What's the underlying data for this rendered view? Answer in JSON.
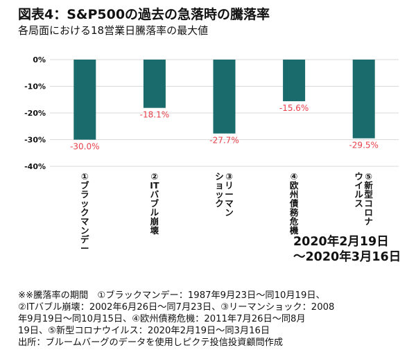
{
  "title": "図表4：S&P500の過去の急落時の騰落率",
  "subtitle": "各局面における18営業日騰落率の最大値",
  "chart_data": {
    "type": "bar",
    "categories": [
      "①ブラックマンデー",
      "②ITバブル崩壊",
      "③リーマンショック",
      "④欧州債務危機",
      "⑤新型コロナウイルス"
    ],
    "category_lines": [
      [
        "①ブラックマンデー"
      ],
      [
        "②ITバブル崩壊"
      ],
      [
        "③リーマン",
        "ショック"
      ],
      [
        "④欧州債務危機"
      ],
      [
        "⑤新型コロナ",
        "ウイルス"
      ]
    ],
    "values": [
      -30.0,
      -18.1,
      -27.7,
      -15.6,
      -29.5
    ],
    "value_labels": [
      "-30.0%",
      "-18.1%",
      "-27.7%",
      "-15.6%",
      "-29.5%"
    ],
    "ylim": [
      -40,
      0
    ],
    "yticks": [
      0,
      -10,
      -20,
      -30,
      -40
    ],
    "ytick_labels": [
      "0%",
      "-10%",
      "-20%",
      "-30%",
      "-40%"
    ],
    "grid": true,
    "bar_color": "#1a6b6b",
    "label_color": "#e8404a"
  },
  "period": [
    "2020年2月19日",
    "～2020年3月16日"
  ],
  "notes": [
    "※※騰落率の期間　①ブラックマンデー：1987年9月23日～同10月19日、",
    "②ITバブル崩壊：2002年6月26日～同7月23日、③リーマンショック：2008",
    "年9月19日～同10月15日、④欧州債務危機：2011年7月26日～同8月",
    "19日、⑤新型コロナウイルス：2020年2月19日～同3月16日",
    "出所：ブルームバーグのデータを使用しピクテ投信投資顧問作成"
  ]
}
